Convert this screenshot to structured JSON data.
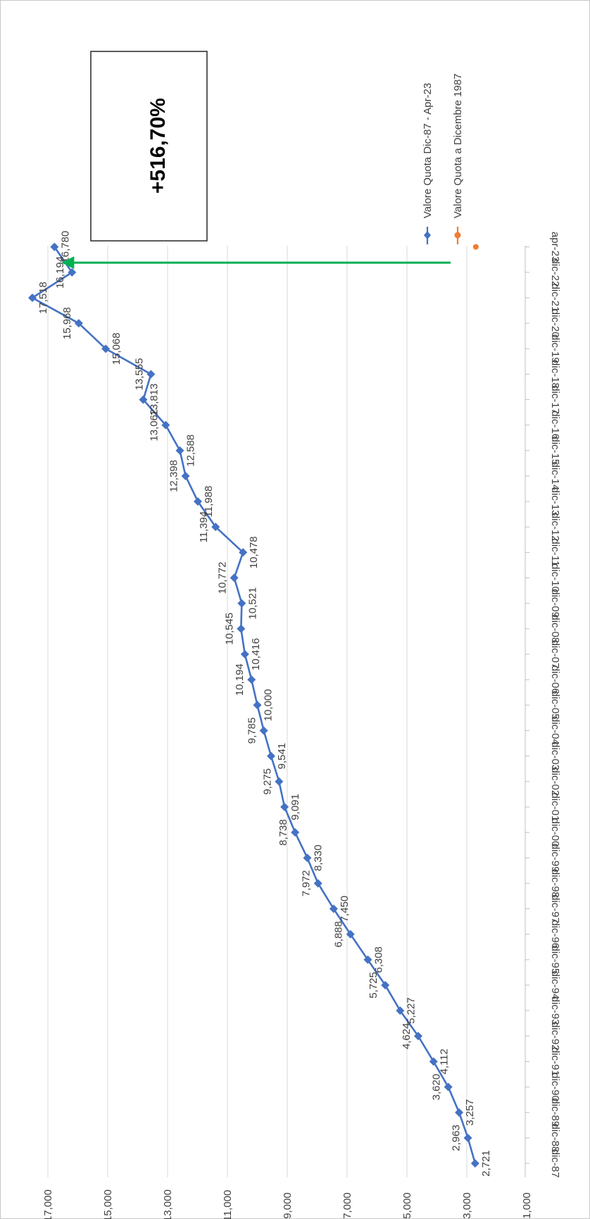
{
  "chart_data": {
    "type": "line",
    "orientation": "rotated-90-clockwise",
    "categories": [
      "dic-87",
      "dic-88",
      "dic-89",
      "dic-90",
      "dic-91",
      "dic-92",
      "dic-93",
      "dic-94",
      "dic-95",
      "dic-96",
      "dic-97",
      "dic-98",
      "dic-99",
      "dic-00",
      "dic-01",
      "dic-02",
      "dic-03",
      "dic-04",
      "dic-05",
      "dic-06",
      "dic-07",
      "dic-08",
      "dic-09",
      "dic-10",
      "dic-11",
      "dic-12",
      "dic-13",
      "dic-14",
      "dic-15",
      "dic-16",
      "dic-17",
      "dic-18",
      "dic-19",
      "dic-20",
      "dic-21",
      "dic-22",
      "apr-23"
    ],
    "series": [
      {
        "name": "Valore Quota Dic-87 - Apr-23",
        "color": "#4472C4",
        "marker": "diamond",
        "values": [
          2.721,
          2.963,
          3.257,
          3.62,
          4.112,
          4.624,
          5.227,
          5.725,
          6.308,
          6.888,
          7.45,
          7.972,
          8.33,
          8.738,
          9.091,
          9.275,
          9.541,
          9.785,
          10.0,
          10.194,
          10.416,
          10.545,
          10.521,
          10.772,
          10.478,
          11.394,
          11.988,
          12.398,
          12.588,
          13.062,
          13.813,
          13.555,
          15.068,
          15.968,
          17.518,
          16.194,
          16.78
        ],
        "labels": [
          "2,721",
          "2,963",
          "3,257",
          "3,620",
          "4,112",
          "4,624",
          "5,227",
          "5,725",
          "6,308",
          "6,888",
          "7,450",
          "7,972",
          "8,330",
          "8,738",
          "9,091",
          "9,275",
          "9,541",
          "9,785",
          "10,000",
          "10,194",
          "10,416",
          "10,545",
          "10,521",
          "10,772",
          "10,478",
          "11,394",
          "11,988",
          "12,398",
          "12,588",
          "13,062",
          "13,813",
          "13,555",
          "15,068",
          "15,968",
          "17,518",
          "16,194",
          "16,780"
        ]
      },
      {
        "name": "Valore Quota a Dicembre 1987",
        "color": "#ED7D31",
        "marker": "circle",
        "point": {
          "category": "apr-23",
          "value": 2.721
        }
      }
    ],
    "ylim": [
      1,
      17
    ],
    "yticks": [
      1,
      3,
      5,
      7,
      9,
      11,
      13,
      15,
      17
    ],
    "ytick_labels": [
      "1,000",
      "3,000",
      "5,000",
      "7,000",
      "9,000",
      "11,000",
      "13,000",
      "15,000",
      "17,000"
    ],
    "grid": true,
    "legend_position": "top-right",
    "annotation": {
      "text": "+516,70%",
      "arrow_color": "#00B050",
      "arrow_target": "apr-23"
    },
    "title": "",
    "xlabel": "",
    "ylabel": ""
  }
}
